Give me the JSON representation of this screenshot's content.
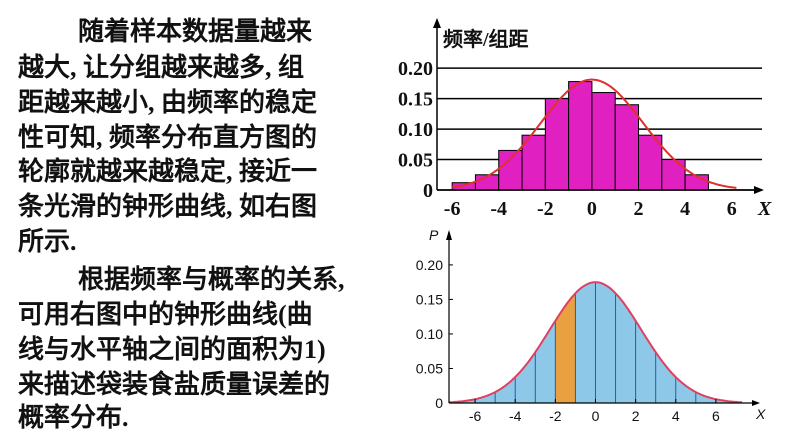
{
  "text": {
    "paragraphs": [
      {
        "lines": [
          "随着样本数据量越来",
          "越大, 让分组越来越多, 组",
          "距越来越小, 由频率的稳定",
          "性可知, 频率分布直方图的",
          "轮廓就越来越稳定, 接近一",
          "条光滑的钟形曲线, 如右图",
          "所示."
        ]
      },
      {
        "lines": [
          "根据频率与概率的关系,",
          "可用右图中的钟形曲线(曲",
          "线与水平轴之间的面积为1)",
          "来描述袋装食盐质量误差的",
          "概率分布."
        ]
      }
    ]
  },
  "chart_data": [
    {
      "type": "histogram",
      "ylabel": "频率/组距",
      "xlabel": "X",
      "bins": [
        -6,
        -5,
        -4,
        -3,
        -2,
        -1,
        0,
        1,
        2,
        3,
        4,
        5
      ],
      "values": [
        0.012,
        0.025,
        0.065,
        0.09,
        0.15,
        0.178,
        0.16,
        0.14,
        0.09,
        0.05,
        0.025
      ],
      "color": "#e020c0",
      "curve": {
        "mean": 0,
        "sd": 2.2,
        "color": "#e03030"
      },
      "xlim": [
        -6.65,
        7.3
      ],
      "ylim": [
        0,
        0.22
      ],
      "xticks": [
        -6,
        -4,
        -2,
        0,
        2,
        4,
        6
      ],
      "yticks": [
        {
          "value": 0,
          "label": "0"
        },
        {
          "value": 0.05,
          "label": "0.05"
        },
        {
          "value": 0.1,
          "label": "0.10"
        },
        {
          "value": 0.15,
          "label": "0.15"
        },
        {
          "value": 0.2,
          "label": "0.20"
        }
      ],
      "grid": true
    },
    {
      "type": "area",
      "ylabel": "P",
      "xlabel": "X",
      "curve": {
        "mean": 0,
        "sd": 2.28,
        "color": "#e04060"
      },
      "color": "#8ec8e8",
      "highlight": [
        -2,
        -1
      ],
      "highlight_color": "#e8a040",
      "xlim": [
        -7.3,
        7.8
      ],
      "ylim": [
        0,
        0.21
      ],
      "xticks": [
        -6,
        -4,
        -2,
        0,
        2,
        4,
        6
      ],
      "yticks": [
        {
          "value": 0,
          "label": "0"
        },
        {
          "value": 0.05,
          "label": "0.05"
        },
        {
          "value": 0.1,
          "label": "0.10"
        },
        {
          "value": 0.15,
          "label": "0.15"
        },
        {
          "value": 0.2,
          "label": "0.20"
        }
      ]
    }
  ]
}
